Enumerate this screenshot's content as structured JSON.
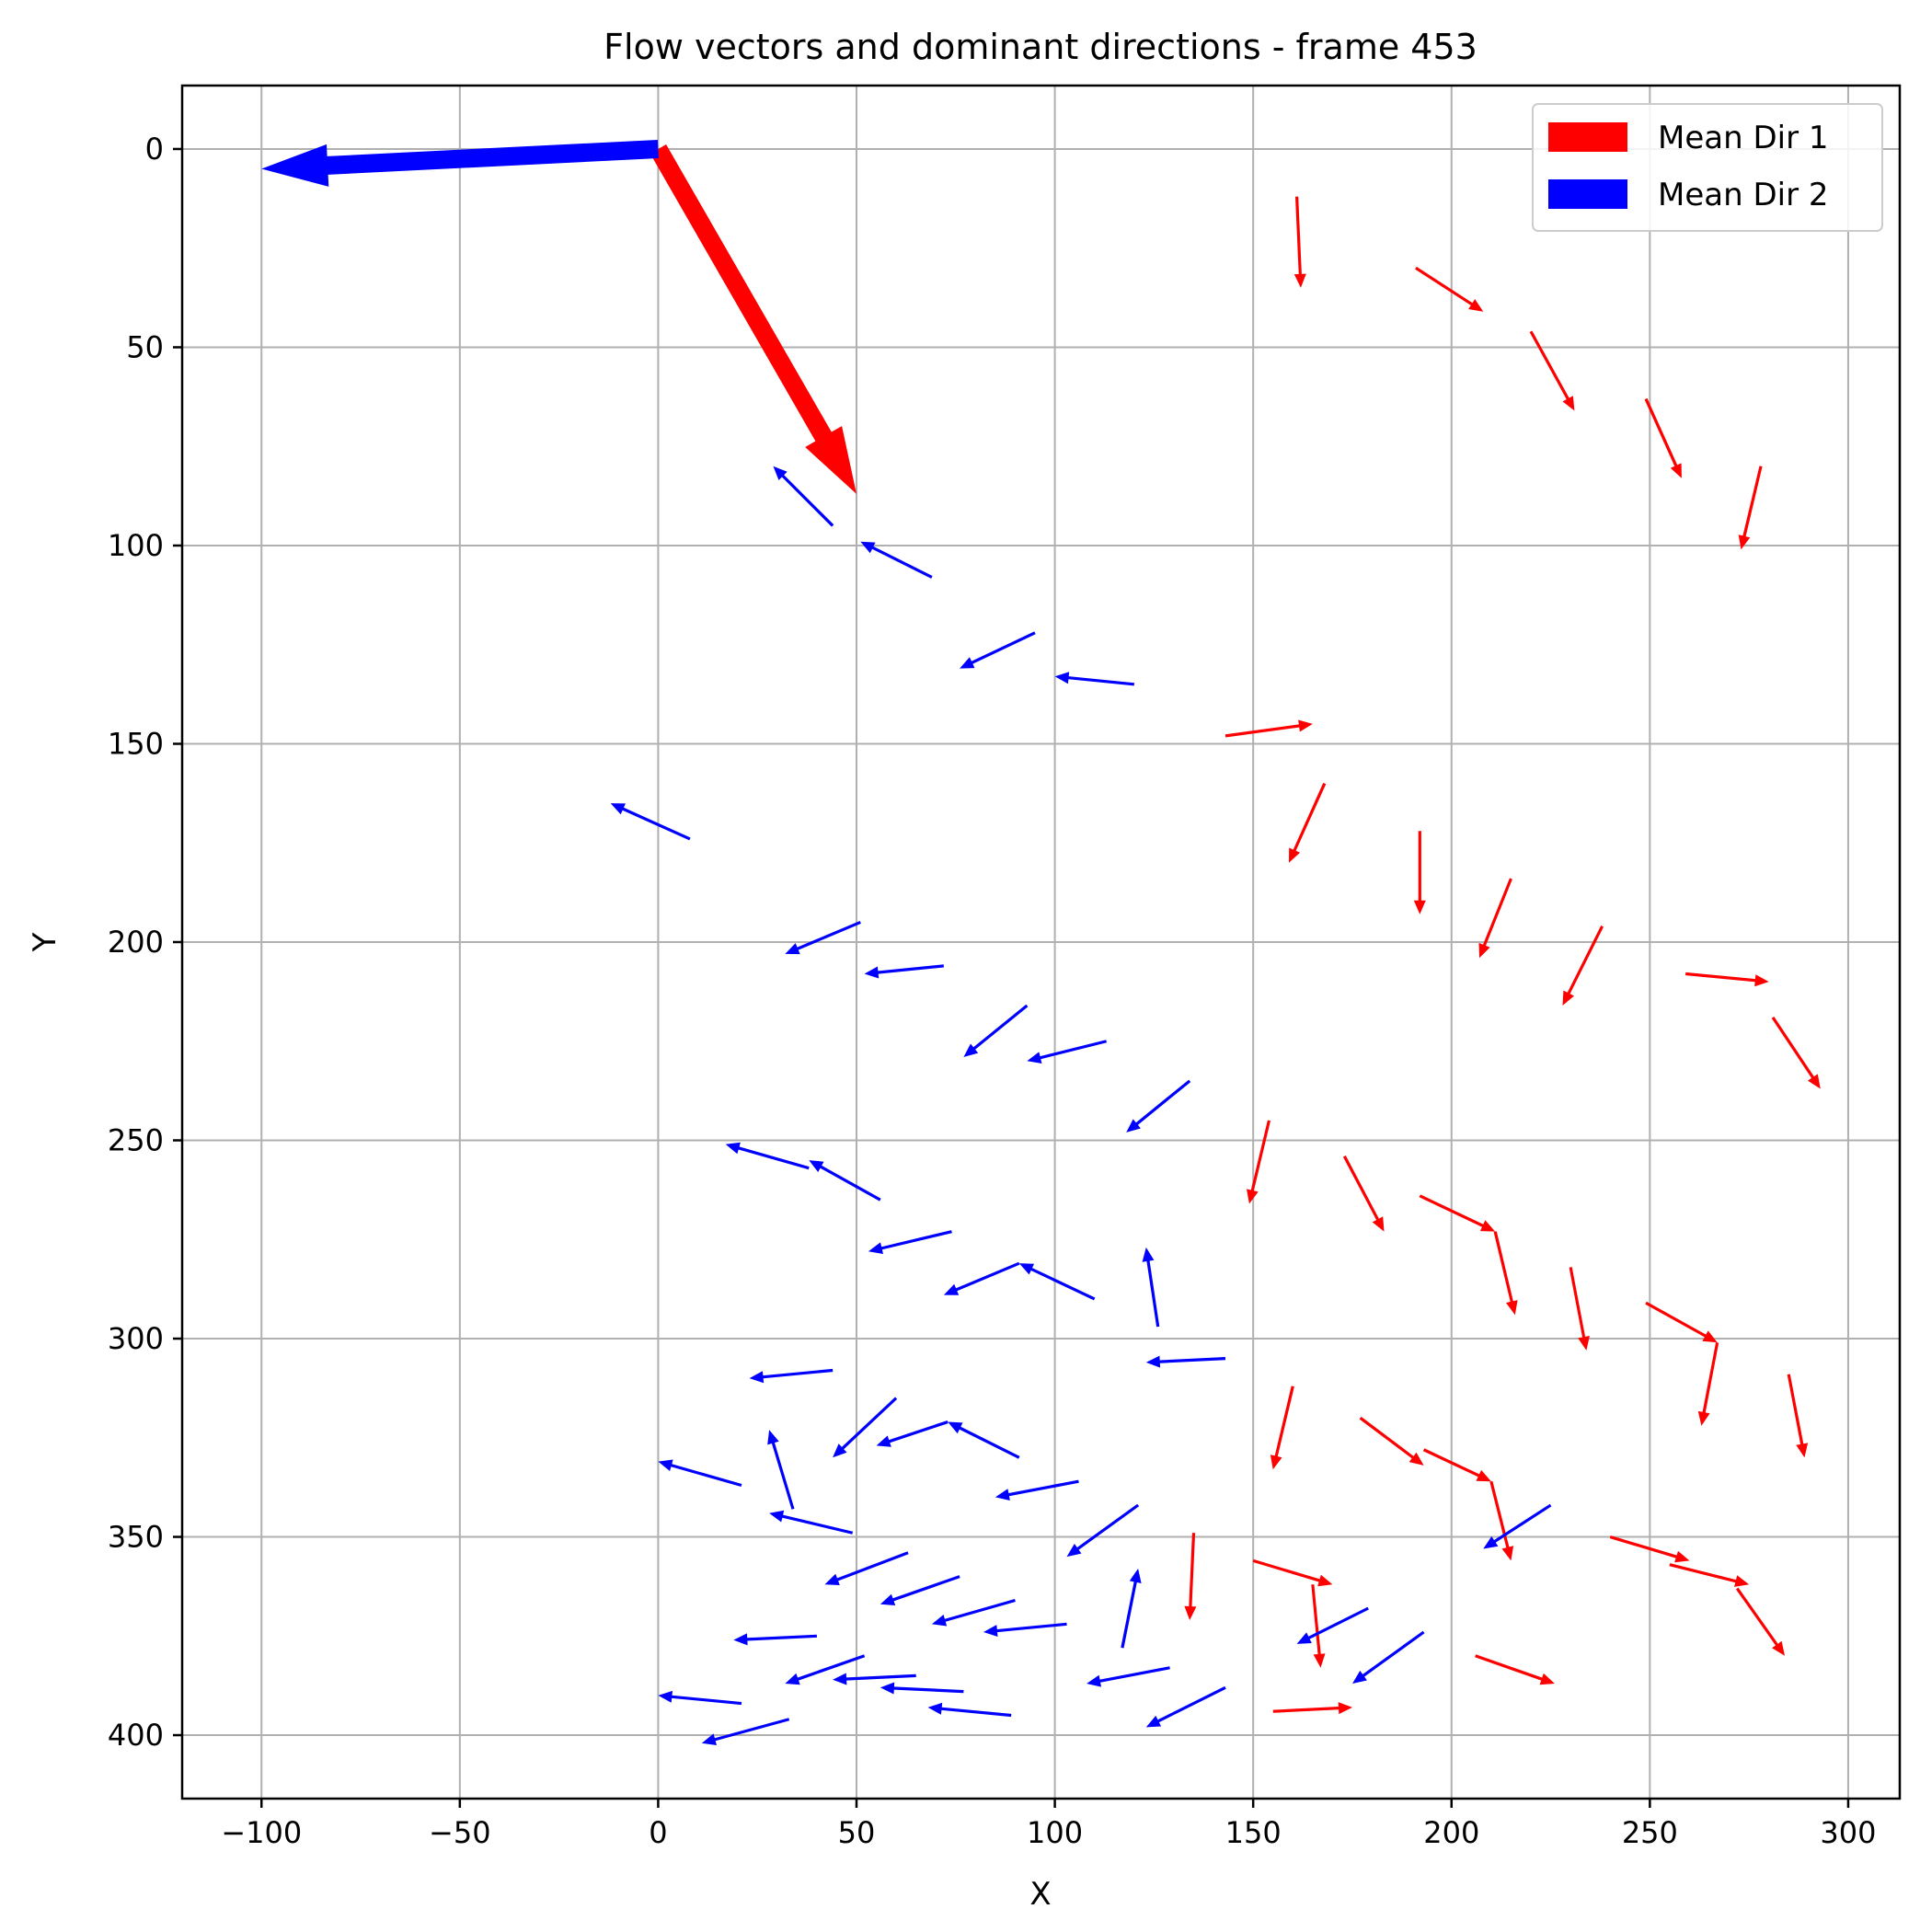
{
  "chart_data": {
    "type": "quiver",
    "title": "Flow vectors and dominant directions - frame 453",
    "xlabel": "X",
    "ylabel": "Y",
    "xlim": [
      -120,
      313
    ],
    "ylim": [
      416,
      -16
    ],
    "y_inverted": true,
    "xticks": [
      -100,
      -50,
      0,
      50,
      100,
      150,
      200,
      250,
      300
    ],
    "xtick_labels": [
      "−100",
      "−50",
      "0",
      "50",
      "100",
      "150",
      "200",
      "250",
      "300"
    ],
    "yticks": [
      0,
      50,
      100,
      150,
      200,
      250,
      300,
      350,
      400
    ],
    "ytick_labels": [
      "0",
      "50",
      "100",
      "150",
      "200",
      "250",
      "300",
      "350",
      "400"
    ],
    "grid": true,
    "legend": {
      "placement": "top-right",
      "entries": [
        {
          "label": "Mean Dir 1",
          "color": "#ff0000"
        },
        {
          "label": "Mean Dir 2",
          "color": "#0000ff"
        }
      ]
    },
    "mean_directions": [
      {
        "name": "Mean Dir 1",
        "color": "#ff0000",
        "x": 0,
        "y": 0,
        "dx": 50,
        "dy": 87
      },
      {
        "name": "Mean Dir 2",
        "color": "#0000ff",
        "x": 0,
        "y": 0,
        "dx": -100,
        "dy": 5
      }
    ],
    "series": [
      {
        "name": "Mean Dir 1",
        "color": "#ff0000",
        "vectors": [
          [
            161,
            12,
            162,
            35
          ],
          [
            191,
            30,
            208,
            41
          ],
          [
            220,
            46,
            231,
            66
          ],
          [
            249,
            63,
            258,
            83
          ],
          [
            278,
            80,
            273,
            101
          ],
          [
            143,
            148,
            165,
            145
          ],
          [
            168,
            160,
            159,
            180
          ],
          [
            192,
            172,
            192,
            193
          ],
          [
            215,
            184,
            207,
            204
          ],
          [
            238,
            196,
            228,
            216
          ],
          [
            259,
            208,
            280,
            210
          ],
          [
            281,
            219,
            293,
            237
          ],
          [
            154,
            245,
            149,
            266
          ],
          [
            173,
            254,
            183,
            273
          ],
          [
            192,
            264,
            211,
            273
          ],
          [
            211,
            273,
            216,
            294
          ],
          [
            230,
            282,
            234,
            303
          ],
          [
            249,
            291,
            267,
            301
          ],
          [
            267,
            301,
            263,
            322
          ],
          [
            285,
            309,
            289,
            330
          ],
          [
            160,
            312,
            155,
            333
          ],
          [
            177,
            320,
            193,
            332
          ],
          [
            193,
            328,
            210,
            336
          ],
          [
            210,
            336,
            215,
            356
          ],
          [
            240,
            350,
            260,
            356
          ],
          [
            255,
            357,
            275,
            362
          ],
          [
            272,
            363,
            284,
            380
          ],
          [
            135,
            349,
            134,
            371
          ],
          [
            150,
            356,
            170,
            362
          ],
          [
            165,
            362,
            167,
            383
          ],
          [
            206,
            380,
            226,
            387
          ],
          [
            155,
            394,
            175,
            393
          ]
        ]
      },
      {
        "name": "Mean Dir 2",
        "color": "#0000ff",
        "vectors": [
          [
            44,
            95,
            29,
            80
          ],
          [
            69,
            108,
            51,
            99
          ],
          [
            95,
            122,
            76,
            131
          ],
          [
            120,
            135,
            100,
            133
          ],
          [
            8,
            174,
            -12,
            165
          ],
          [
            51,
            195,
            32,
            203
          ],
          [
            72,
            206,
            52,
            208
          ],
          [
            93,
            216,
            77,
            229
          ],
          [
            113,
            225,
            93,
            230
          ],
          [
            134,
            235,
            118,
            248
          ],
          [
            56,
            265,
            38,
            255
          ],
          [
            38,
            257,
            17,
            251
          ],
          [
            74,
            273,
            53,
            278
          ],
          [
            110,
            290,
            91,
            281
          ],
          [
            91,
            281,
            72,
            289
          ],
          [
            126,
            297,
            123,
            277
          ],
          [
            143,
            305,
            123,
            306
          ],
          [
            44,
            308,
            23,
            310
          ],
          [
            60,
            315,
            44,
            330
          ],
          [
            91,
            330,
            73,
            321
          ],
          [
            73,
            321,
            55,
            327
          ],
          [
            34,
            343,
            28,
            323
          ],
          [
            21,
            337,
            0,
            331
          ],
          [
            49,
            349,
            28,
            344
          ],
          [
            106,
            336,
            85,
            340
          ],
          [
            121,
            342,
            103,
            355
          ],
          [
            225,
            342,
            208,
            353
          ],
          [
            63,
            354,
            42,
            362
          ],
          [
            76,
            360,
            56,
            367
          ],
          [
            90,
            366,
            69,
            372
          ],
          [
            103,
            372,
            82,
            374
          ],
          [
            117,
            378,
            121,
            358
          ],
          [
            40,
            375,
            19,
            376
          ],
          [
            52,
            380,
            32,
            387
          ],
          [
            65,
            385,
            44,
            386
          ],
          [
            77,
            389,
            56,
            388
          ],
          [
            129,
            383,
            108,
            387
          ],
          [
            179,
            368,
            161,
            377
          ],
          [
            193,
            374,
            175,
            387
          ],
          [
            21,
            392,
            0,
            390
          ],
          [
            33,
            396,
            11,
            402
          ],
          [
            89,
            395,
            68,
            393
          ],
          [
            143,
            388,
            123,
            398
          ]
        ]
      }
    ]
  }
}
